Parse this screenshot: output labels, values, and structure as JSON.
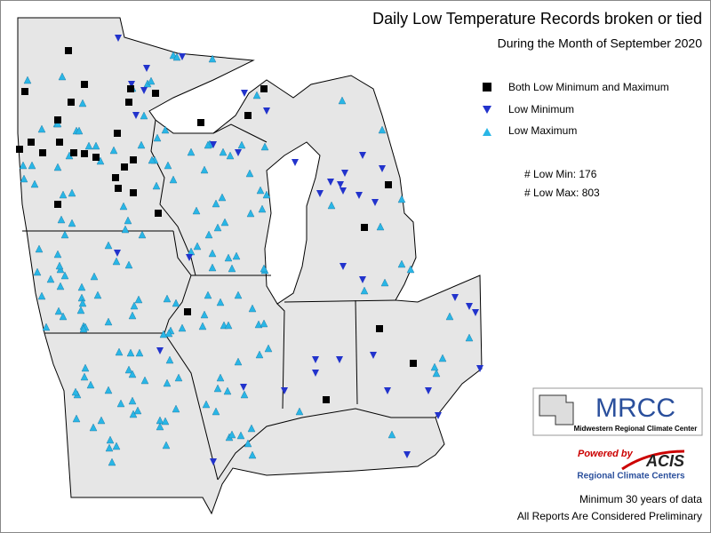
{
  "header": {
    "title": "Daily Low Temperature Records broken or tied",
    "subtitle": "During the Month of September 2020"
  },
  "legend": {
    "items": [
      "Both Low Minimum and Maximum",
      "Low Minimum",
      "Low Maximum"
    ]
  },
  "counts": [
    "# Low Min: 176",
    "# Low Max: 803"
  ],
  "logos": {
    "mrcc": "MRCC",
    "mrcc_name": "Midwestern Regional Climate Center",
    "powered_by": "Powered by",
    "acis": "ACIS",
    "rcc": "Regional Climate Centers"
  },
  "footer": [
    "Minimum 30 years of data",
    "All Reports Are Considered Preliminary"
  ]
}
